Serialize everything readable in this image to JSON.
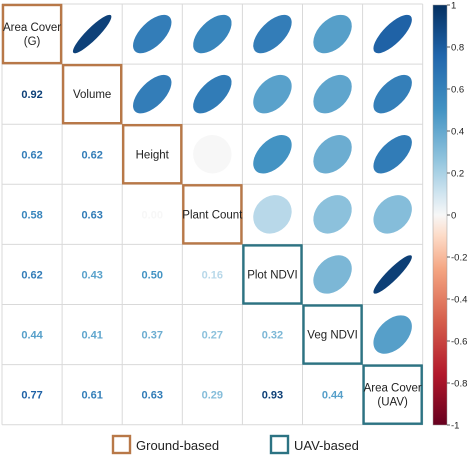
{
  "chart_data": {
    "type": "heatmap",
    "variables": [
      [
        "Area Cover",
        "(G)"
      ],
      [
        "Volume"
      ],
      [
        "Height"
      ],
      [
        "Plant Count"
      ],
      [
        "Plot NDVI"
      ],
      [
        "Veg NDVI"
      ],
      [
        "Area Cover",
        "(UAV)"
      ]
    ],
    "groups": [
      {
        "name": "Ground-based",
        "color": "#b87848",
        "members": [
          0,
          1,
          2,
          3
        ]
      },
      {
        "name": "UAV-based",
        "color": "#2c7383",
        "members": [
          4,
          5,
          6
        ]
      }
    ],
    "matrix": [
      [
        1.0,
        0.92,
        0.62,
        0.58,
        0.62,
        0.44,
        0.77
      ],
      [
        0.92,
        1.0,
        0.62,
        0.63,
        0.43,
        0.41,
        0.61
      ],
      [
        0.62,
        0.62,
        1.0,
        0.0,
        0.5,
        0.37,
        0.63
      ],
      [
        0.58,
        0.63,
        0.0,
        1.0,
        0.16,
        0.27,
        0.29
      ],
      [
        0.62,
        0.43,
        0.5,
        0.16,
        1.0,
        0.32,
        0.93
      ],
      [
        0.44,
        0.41,
        0.37,
        0.27,
        0.32,
        1.0,
        0.44
      ],
      [
        0.77,
        0.61,
        0.63,
        0.29,
        0.93,
        0.44,
        1.0
      ]
    ],
    "lower_triangle": "coefficients",
    "upper_triangle": "ellipses",
    "colorbar": {
      "range": [
        -1,
        1
      ],
      "ticks": [
        "1",
        "0.8",
        "0.6",
        "0.4",
        "0.2",
        "0",
        "-0.2",
        "-0.4",
        "-0.6",
        "-0.8",
        "-1"
      ],
      "colors": {
        "negative": "#67001f",
        "zero": "#f7f7f7",
        "positive": "#053061"
      }
    },
    "legend": {
      "items": [
        {
          "label": "Ground-based",
          "color": "#b87848"
        },
        {
          "label": "UAV-based",
          "color": "#2c7383"
        }
      ],
      "placement": "bottom"
    }
  }
}
